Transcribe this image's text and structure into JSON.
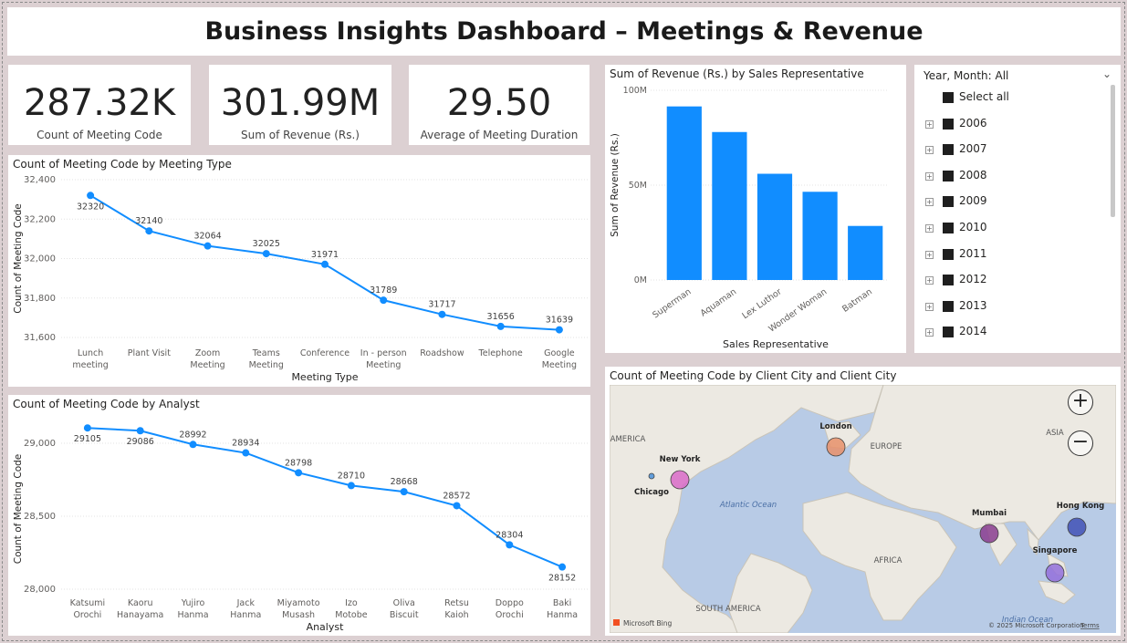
{
  "title": "Business Insights Dashboard – Meetings & Revenue",
  "kpis": [
    {
      "value": "287.32K",
      "label": "Count of Meeting Code"
    },
    {
      "value": "301.99M",
      "label": "Sum of Revenue (Rs.)"
    },
    {
      "value": "29.50",
      "label": "Average of Meeting Duration"
    }
  ],
  "chart_data": [
    {
      "type": "line",
      "title": "Count of Meeting Code by Meeting Type",
      "xlabel": "Meeting Type",
      "ylabel": "Count of Meeting Code",
      "categories": [
        [
          "Lunch",
          "meeting"
        ],
        [
          "Plant Visit"
        ],
        [
          "Zoom",
          "Meeting"
        ],
        [
          "Teams",
          "Meeting"
        ],
        [
          "Conference"
        ],
        [
          "In - person",
          "Meeting"
        ],
        [
          "Roadshow"
        ],
        [
          "Telephone"
        ],
        [
          "Google",
          "Meeting"
        ]
      ],
      "values": [
        32320,
        32140,
        32064,
        32025,
        31971,
        31789,
        31717,
        31656,
        31639
      ],
      "ylim": [
        31600,
        32400
      ],
      "yticks": [
        31600,
        31800,
        32000,
        32200,
        32400
      ],
      "ytick_labels": [
        "31,600",
        "31,800",
        "32,000",
        "32,200",
        "32,400"
      ],
      "color": "#118DFF"
    },
    {
      "type": "line",
      "title": "Count of Meeting Code by Analyst",
      "xlabel": "Analyst",
      "ylabel": "Count of Meeting Code",
      "categories": [
        [
          "Katsumi",
          "Orochi"
        ],
        [
          "Kaoru",
          "Hanayama"
        ],
        [
          "Yujiro",
          "Hanma"
        ],
        [
          "Jack",
          "Hanma"
        ],
        [
          "Miyamoto",
          "Musash"
        ],
        [
          "Izo",
          "Motobe"
        ],
        [
          "Oliva",
          "Biscuit"
        ],
        [
          "Retsu",
          "Kaioh"
        ],
        [
          "Doppo",
          "Orochi"
        ],
        [
          "Baki",
          "Hanma"
        ]
      ],
      "values": [
        29105,
        29086,
        28992,
        28934,
        28798,
        28710,
        28668,
        28572,
        28304,
        28152
      ],
      "ylim": [
        28000,
        29100
      ],
      "yticks": [
        28000,
        28500,
        29000
      ],
      "ytick_labels": [
        "28,000",
        "28,500",
        "29,000"
      ],
      "color": "#118DFF"
    },
    {
      "type": "bar",
      "title": "Sum of Revenue (Rs.) by Sales Representative",
      "xlabel": "Sales Representative",
      "ylabel": "Sum of Revenue (Rs.)",
      "categories": [
        "Superman",
        "Aquaman",
        "Lex Luthor",
        "Wonder Woman",
        "Batman"
      ],
      "values": [
        91500000,
        78000000,
        56000000,
        46500000,
        28500000
      ],
      "ylim": [
        0,
        100000000
      ],
      "yticks": [
        0,
        50000000,
        100000000
      ],
      "ytick_labels": [
        "0M",
        "50M",
        "100M"
      ],
      "color": "#118DFF"
    }
  ],
  "slicer": {
    "header": "Year, Month: All",
    "select_all": "Select all",
    "items": [
      "2006",
      "2007",
      "2008",
      "2009",
      "2010",
      "2011",
      "2012",
      "2013",
      "2014"
    ]
  },
  "map": {
    "title": "Count of Meeting Code by Client City and Client City",
    "cities": [
      {
        "name": "London",
        "color": "#E8916A"
      },
      {
        "name": "New York",
        "color": "#D96BC8"
      },
      {
        "name": "Chicago",
        "color": "#4A90D9"
      },
      {
        "name": "Mumbai",
        "color": "#8A3D8F"
      },
      {
        "name": "Hong Kong",
        "color": "#3F51B5"
      },
      {
        "name": "Singapore",
        "color": "#9370DB"
      }
    ],
    "regions": [
      "ASIA",
      "EUROPE",
      "AFRICA",
      "SOUTH AMERICA",
      "AMERICA"
    ],
    "oceans": [
      "Atlantic Ocean",
      "Indian Ocean"
    ],
    "attribution": "© 2025 Microsoft Corporation",
    "terms": "Terms",
    "logo": "Microsoft Bing",
    "zoom_in": "+",
    "zoom_out": "−"
  }
}
